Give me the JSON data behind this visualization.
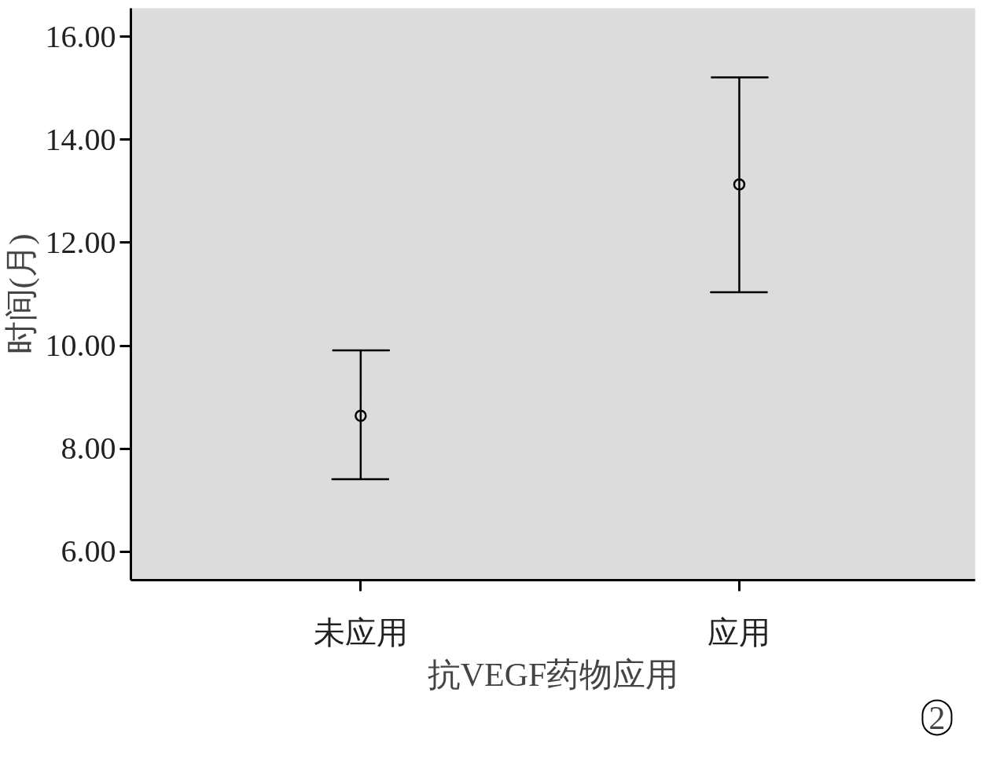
{
  "chart_data": {
    "type": "scatter",
    "xlabel": "抗VEGF药物应用",
    "ylabel": "时间(月)",
    "categories": [
      "未应用",
      "应用"
    ],
    "values": [
      8.64,
      13.13
    ],
    "errors": [
      [
        7.41,
        9.91
      ],
      [
        11.04,
        15.21
      ]
    ],
    "color": "#000000",
    "marker": "circle",
    "ylim": [
      5.45,
      16.55
    ],
    "yticks": [
      {
        "value": 6,
        "label": "6.00"
      },
      {
        "value": 8,
        "label": "8.00"
      },
      {
        "value": 10,
        "label": "10.00"
      },
      {
        "value": 12,
        "label": "12.00"
      },
      {
        "value": 14,
        "label": "14.00"
      },
      {
        "value": 16,
        "label": "16.00"
      }
    ],
    "grid": false,
    "annotations": [
      "2"
    ]
  }
}
